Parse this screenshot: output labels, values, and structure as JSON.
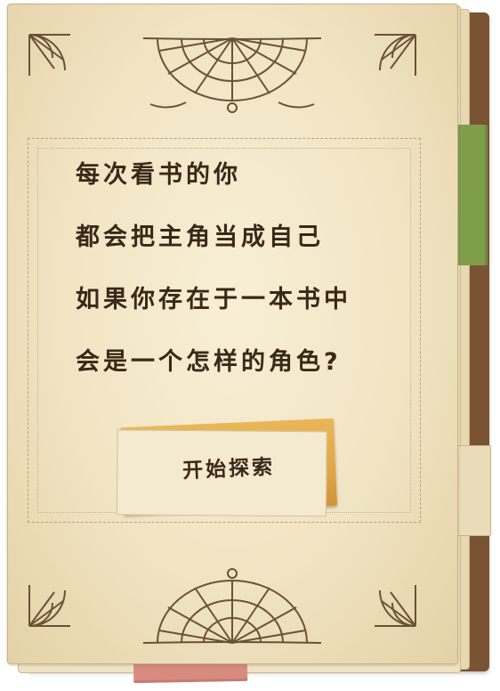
{
  "story": {
    "lines": [
      "每次看书的你",
      "都会把主角当成自己",
      "如果你存在于一本书中",
      "会是一个怎样的角色?"
    ]
  },
  "start_button": {
    "label": "开始探索"
  },
  "colors": {
    "page": "#f4e9cd",
    "ink": "#3a2818",
    "button": "#e3ab4e",
    "tab_green": "#7f9e4a",
    "tab_pink": "#d98b80",
    "cover": "#7a5332"
  }
}
